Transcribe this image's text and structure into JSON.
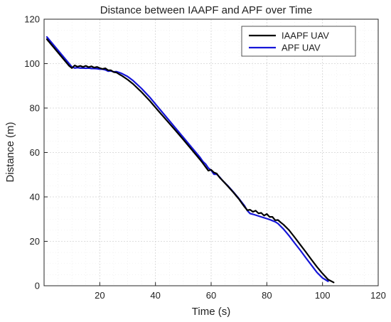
{
  "chart_data": {
    "type": "line",
    "title": "Distance between IAAPF and APF over Time",
    "xlabel": "Time (s)",
    "ylabel": "Distance (m)",
    "xlim": [
      0,
      120
    ],
    "ylim": [
      0,
      120
    ],
    "xticks": [
      20,
      40,
      60,
      80,
      100,
      120
    ],
    "yticks": [
      0,
      20,
      40,
      60,
      80,
      100,
      120
    ],
    "grid": true,
    "legend_position": "top-right",
    "series": [
      {
        "name": "IAAPF UAV",
        "color": "#000000",
        "x": [
          1,
          3,
          5,
          7,
          9,
          10,
          11,
          12,
          13,
          14,
          15,
          16,
          17,
          18,
          19,
          20,
          21,
          22,
          23,
          24,
          25,
          26,
          27,
          28,
          30,
          32,
          35,
          38,
          41,
          44,
          47,
          50,
          53,
          56,
          57,
          58,
          59,
          60,
          61,
          62,
          63,
          64,
          66,
          68,
          70,
          71,
          72,
          73,
          74,
          75,
          76,
          77,
          78,
          79,
          80,
          81,
          82,
          83,
          84,
          85,
          86,
          88,
          90,
          92,
          94,
          96,
          98,
          100,
          102,
          104
        ],
        "y": [
          111.0,
          108.0,
          105.0,
          102.0,
          99.0,
          98.0,
          99.2,
          98.6,
          99.0,
          98.5,
          99.0,
          98.4,
          98.8,
          98.2,
          98.5,
          98.0,
          97.6,
          97.9,
          97.0,
          97.0,
          96.2,
          96.0,
          95.2,
          94.5,
          92.8,
          90.8,
          87.2,
          83.2,
          78.8,
          74.5,
          70.2,
          65.8,
          61.3,
          56.8,
          55.2,
          53.5,
          51.8,
          52.2,
          51.0,
          50.5,
          48.8,
          47.5,
          44.8,
          42.0,
          39.0,
          37.2,
          35.5,
          34.0,
          34.2,
          33.3,
          33.8,
          32.6,
          32.8,
          31.6,
          32.3,
          31.0,
          31.0,
          29.5,
          29.6,
          28.5,
          27.5,
          25.0,
          21.8,
          18.5,
          15.2,
          11.8,
          8.5,
          5.5,
          2.8,
          1.5
        ]
      },
      {
        "name": "APF UAV",
        "color": "#1515d8",
        "x": [
          1,
          3,
          5,
          7,
          9,
          10,
          11,
          12,
          13,
          14,
          15,
          16,
          17,
          18,
          19,
          20,
          21,
          22,
          23,
          24,
          25,
          26,
          27,
          28,
          30,
          32,
          35,
          38,
          41,
          44,
          47,
          50,
          53,
          56,
          57,
          58,
          59,
          60,
          61,
          62,
          63,
          64,
          66,
          68,
          70,
          72,
          73,
          74,
          75,
          76,
          77,
          78,
          79,
          80,
          81,
          82,
          83,
          84,
          86,
          88,
          90,
          92,
          94,
          96,
          98,
          100,
          102
        ],
        "y": [
          112.0,
          109.0,
          106.0,
          103.0,
          100.0,
          98.5,
          98.0,
          98.2,
          98.0,
          98.0,
          97.9,
          98.0,
          97.8,
          97.8,
          97.7,
          97.5,
          97.5,
          97.2,
          96.6,
          96.7,
          96.3,
          96.4,
          96.0,
          95.5,
          94.2,
          92.3,
          88.8,
          84.8,
          80.3,
          75.8,
          71.3,
          66.8,
          62.3,
          57.8,
          56.0,
          54.8,
          53.0,
          52.0,
          50.2,
          50.2,
          49.0,
          47.5,
          45.0,
          42.2,
          39.2,
          36.0,
          33.8,
          32.5,
          32.2,
          31.8,
          31.4,
          31.0,
          30.6,
          30.2,
          29.8,
          29.3,
          28.8,
          28.0,
          25.5,
          22.5,
          19.2,
          16.0,
          12.6,
          9.3,
          6.0,
          3.5,
          2.0
        ]
      }
    ]
  }
}
